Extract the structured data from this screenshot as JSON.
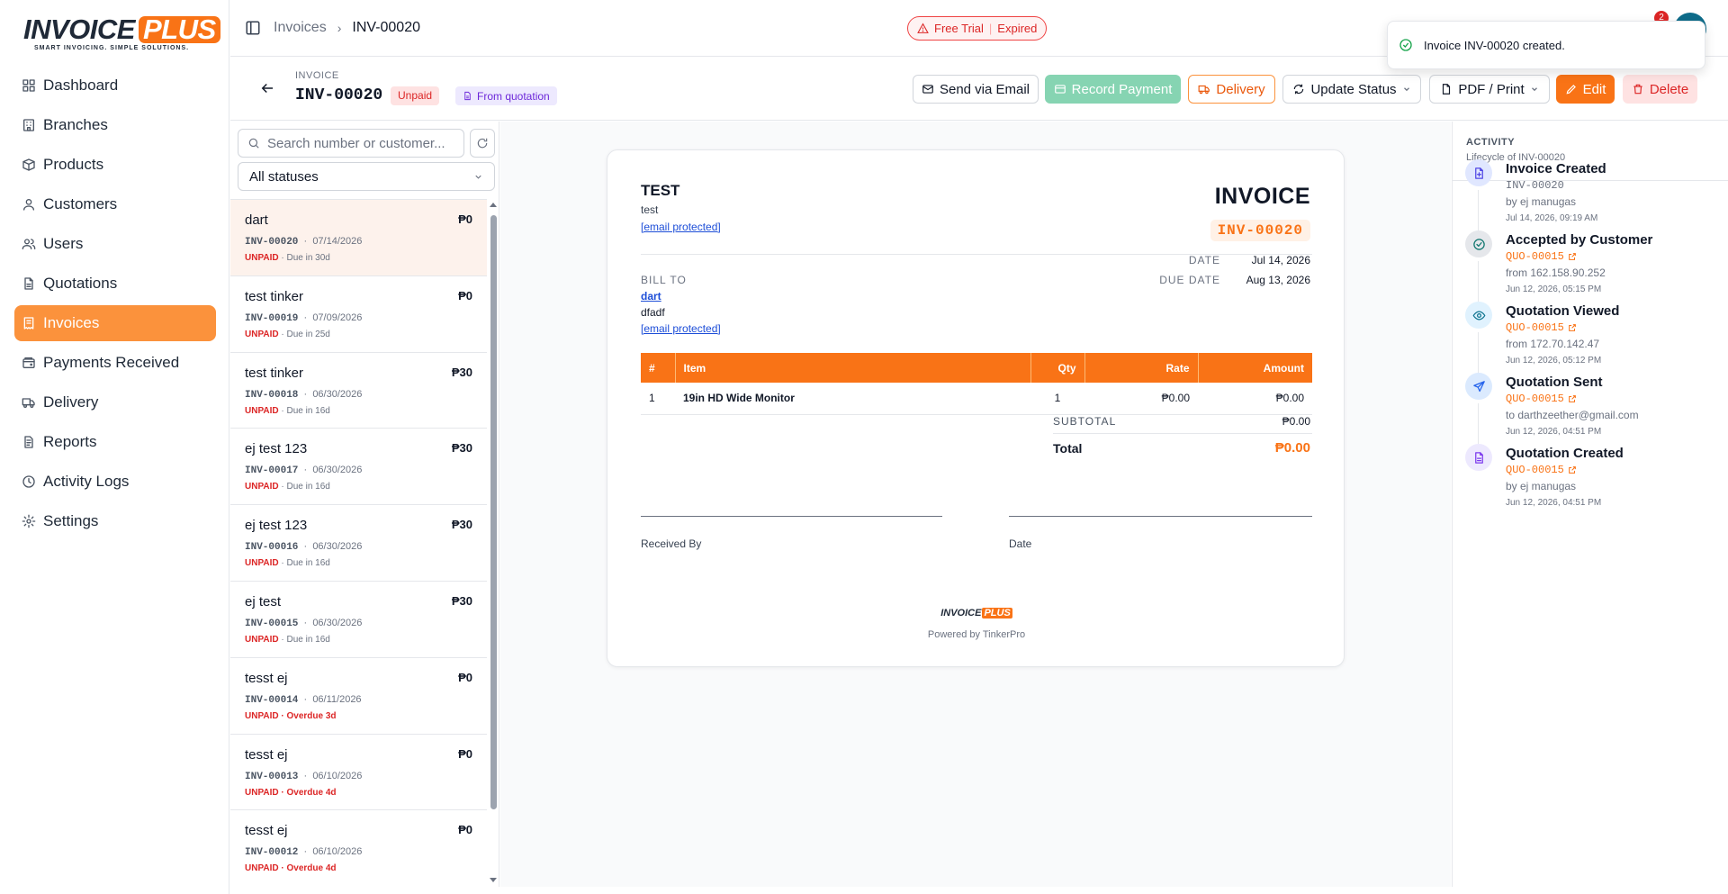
{
  "brand": {
    "name": "INVOICE",
    "plus": "PLUS",
    "tagline": "SMART INVOICING. SIMPLE SOLUTIONS."
  },
  "nav": [
    {
      "label": "Dashboard",
      "icon": "dashboard-icon"
    },
    {
      "label": "Branches",
      "icon": "building-icon"
    },
    {
      "label": "Products",
      "icon": "package-icon"
    },
    {
      "label": "Customers",
      "icon": "user-icon"
    },
    {
      "label": "Users",
      "icon": "users-icon"
    },
    {
      "label": "Quotations",
      "icon": "document-icon"
    },
    {
      "label": "Invoices",
      "icon": "receipt-icon",
      "active": true
    },
    {
      "label": "Payments Received",
      "icon": "wallet-icon"
    },
    {
      "label": "Delivery",
      "icon": "truck-icon"
    },
    {
      "label": "Reports",
      "icon": "report-icon"
    },
    {
      "label": "Activity Logs",
      "icon": "clock-icon"
    },
    {
      "label": "Settings",
      "icon": "gear-icon"
    }
  ],
  "header": {
    "breadcrumb": [
      "Invoices",
      "INV-00020"
    ],
    "trial": {
      "label": "Free Trial",
      "state": "Expired"
    },
    "notification_count": "2"
  },
  "toast": {
    "message": "Invoice INV-00020 created."
  },
  "invoice_bar": {
    "kicker": "INVOICE",
    "number": "INV-00020",
    "status_badge": "Unpaid",
    "source_badge": "From quotation",
    "actions": {
      "send_email": "Send via Email",
      "record_payment": "Record Payment",
      "delivery": "Delivery",
      "update_status": "Update Status",
      "pdf_print": "PDF / Print",
      "edit": "Edit",
      "delete": "Delete"
    }
  },
  "list": {
    "search_placeholder": "Search number or customer...",
    "status_filter": "All statuses",
    "items": [
      {
        "customer": "dart",
        "amount": "₱0",
        "number": "INV-00020",
        "date": "07/14/2026",
        "status": "UNPAID",
        "due": "· Due in 30d",
        "overdue": false,
        "selected": true
      },
      {
        "customer": "test tinker",
        "amount": "₱0",
        "number": "INV-00019",
        "date": "07/09/2026",
        "status": "UNPAID",
        "due": "· Due in 25d",
        "overdue": false
      },
      {
        "customer": "test tinker",
        "amount": "₱30",
        "number": "INV-00018",
        "date": "06/30/2026",
        "status": "UNPAID",
        "due": "· Due in 16d",
        "overdue": false
      },
      {
        "customer": "ej test 123",
        "amount": "₱30",
        "number": "INV-00017",
        "date": "06/30/2026",
        "status": "UNPAID",
        "due": "· Due in 16d",
        "overdue": false
      },
      {
        "customer": "ej test 123",
        "amount": "₱30",
        "number": "INV-00016",
        "date": "06/30/2026",
        "status": "UNPAID",
        "due": "· Due in 16d",
        "overdue": false
      },
      {
        "customer": "ej test",
        "amount": "₱30",
        "number": "INV-00015",
        "date": "06/30/2026",
        "status": "UNPAID",
        "due": "· Due in 16d",
        "overdue": false
      },
      {
        "customer": "tesst ej",
        "amount": "₱0",
        "number": "INV-00014",
        "date": "06/11/2026",
        "status": "UNPAID",
        "due": "· Overdue 3d",
        "overdue": true
      },
      {
        "customer": "tesst ej",
        "amount": "₱0",
        "number": "INV-00013",
        "date": "06/10/2026",
        "status": "UNPAID",
        "due": "· Overdue 4d",
        "overdue": true
      },
      {
        "customer": "tesst ej",
        "amount": "₱0",
        "number": "INV-00012",
        "date": "06/10/2026",
        "status": "UNPAID",
        "due": "· Overdue 4d",
        "overdue": true
      }
    ]
  },
  "document": {
    "company_name": "TEST",
    "company_sub": "test",
    "company_email": "[email protected]",
    "heading": "INVOICE",
    "number": "INV-00020",
    "bill_to_label": "BILL TO",
    "bill_to_name": "dart",
    "bill_to_address": "dfadf",
    "bill_to_email": "[email protected]",
    "date_label": "DATE",
    "date": "Jul 14, 2026",
    "due_date_label": "DUE DATE",
    "due_date": "Aug 13, 2026",
    "columns": [
      "#",
      "Item",
      "Qty",
      "Rate",
      "Amount"
    ],
    "rows": [
      {
        "no": "1",
        "item": "19in HD Wide Monitor",
        "qty": "1",
        "rate": "₱0.00",
        "amount": "₱0.00"
      }
    ],
    "subtotal_label": "SUBTOTAL",
    "subtotal": "₱0.00",
    "total_label": "Total",
    "total": "₱0.00",
    "received_by": "Received By",
    "date_sign": "Date",
    "footer_logo": {
      "name": "INVOICE",
      "plus": "PLUS"
    },
    "powered_by": "Powered by TinkerPro"
  },
  "activity": {
    "title": "ACTIVITY",
    "subtitle": "Lifecycle of INV-00020",
    "events": [
      {
        "title": "Invoice Created",
        "ref": "INV-00020",
        "ref_link": false,
        "detail": "by ej manugas",
        "time": "Jul 14, 2026, 09:19 AM",
        "icon": "file-plus-icon",
        "color": "#4f46e5",
        "bg": "#e0e7ff"
      },
      {
        "title": "Accepted by Customer",
        "ref": "QUO-00015",
        "ref_link": true,
        "detail": "from 162.158.90.252",
        "time": "Jun 12, 2026, 05:15 PM",
        "icon": "check-circle-icon",
        "color": "#0f766e",
        "bg": "#e5e7eb"
      },
      {
        "title": "Quotation Viewed",
        "ref": "QUO-00015",
        "ref_link": true,
        "detail": "from 172.70.142.47",
        "time": "Jun 12, 2026, 05:12 PM",
        "icon": "eye-icon",
        "color": "#0e7490",
        "bg": "#e0f2fe"
      },
      {
        "title": "Quotation Sent",
        "ref": "QUO-00015",
        "ref_link": true,
        "detail": "to darthzeether@gmail.com",
        "time": "Jun 12, 2026, 04:51 PM",
        "icon": "send-icon",
        "color": "#2563eb",
        "bg": "#dbeafe"
      },
      {
        "title": "Quotation Created",
        "ref": "QUO-00015",
        "ref_link": true,
        "detail": "by ej manugas",
        "time": "Jun 12, 2026, 04:51 PM",
        "icon": "document-icon",
        "color": "#7c3aed",
        "bg": "#ede9fe"
      }
    ]
  },
  "colors": {
    "accent": "#f97316",
    "danger": "#dc2626",
    "success": "#16a34a"
  }
}
